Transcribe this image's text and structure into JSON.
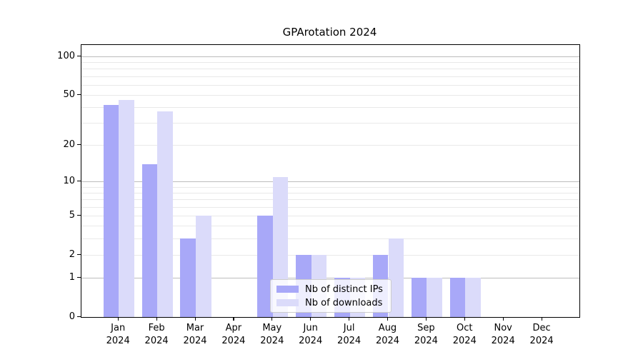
{
  "chart_data": {
    "type": "bar",
    "title": "GPArotation 2024",
    "yscale": "log1p",
    "ylim": [
      0,
      123
    ],
    "y_ticks": [
      0,
      1,
      2,
      5,
      10,
      20,
      50,
      100
    ],
    "categories": [
      "Jan 2024",
      "Feb 2024",
      "Mar 2024",
      "Apr 2024",
      "May 2024",
      "Jun 2024",
      "Jul 2024",
      "Aug 2024",
      "Sep 2024",
      "Oct 2024",
      "Nov 2024",
      "Dec 2024"
    ],
    "x_tick_month": [
      "Jan",
      "Feb",
      "Mar",
      "Apr",
      "May",
      "Jun",
      "Jul",
      "Aug",
      "Sep",
      "Oct",
      "Nov",
      "Dec"
    ],
    "x_tick_year": "2024",
    "series": [
      {
        "name": "Nb of distinct IPs",
        "color": "#a8a8f8",
        "values": [
          42,
          14,
          3,
          0,
          5,
          2,
          1,
          2,
          1,
          1,
          0,
          0
        ]
      },
      {
        "name": "Nb of downloads",
        "color": "#dbdbfa",
        "values": [
          46,
          37,
          5,
          0,
          11,
          2,
          1,
          3,
          1,
          1,
          0,
          0
        ]
      }
    ],
    "grid": {
      "major_lines": [
        1,
        10,
        100
      ],
      "minor_lines": [
        2,
        3,
        4,
        5,
        6,
        7,
        8,
        9,
        20,
        30,
        40,
        50,
        60,
        70,
        80,
        90
      ],
      "major_color": "#bcbcbc",
      "minor_color": "#e9e9e9"
    },
    "legend_position": "lower center inside"
  }
}
